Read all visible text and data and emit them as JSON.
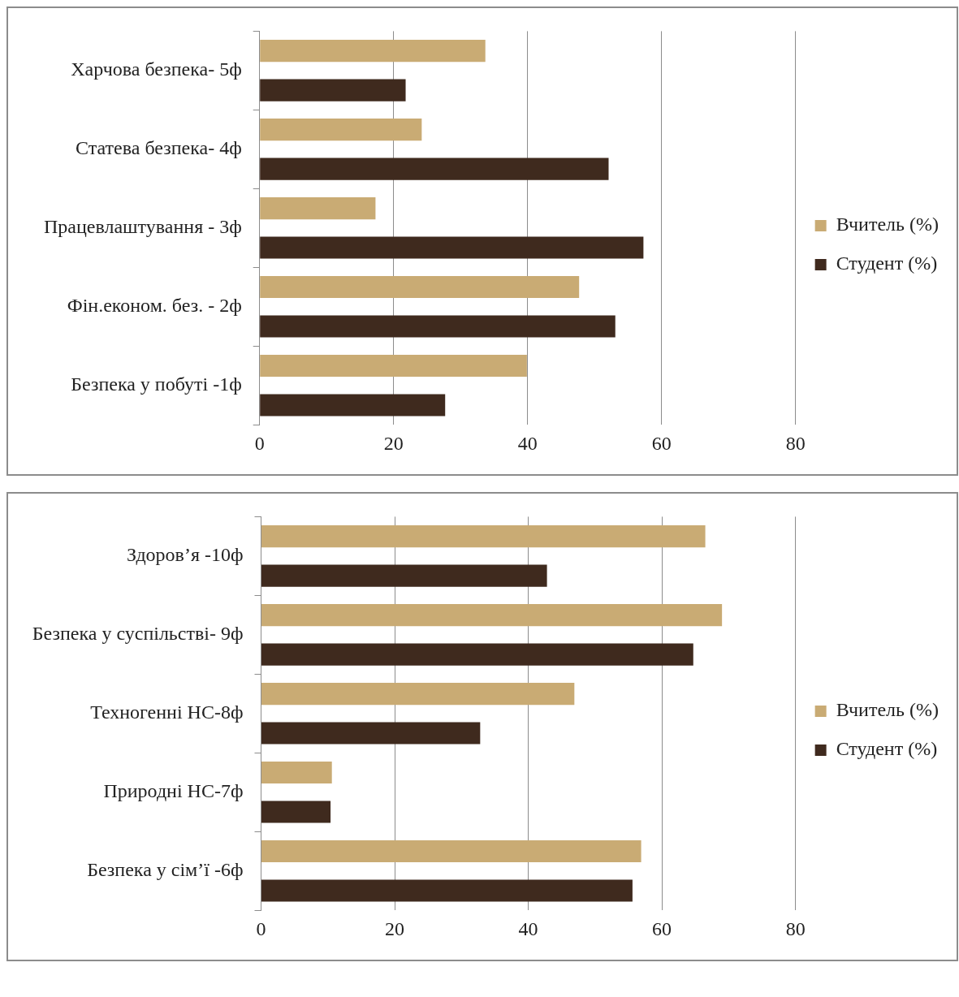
{
  "chart_data": [
    {
      "type": "bar",
      "orientation": "horizontal",
      "categories": [
        "Харчова безпека- 5ф",
        "Статева безпека- 4ф",
        "Працевлаштування - 3ф",
        "Фін.економ. без. - 2ф",
        "Безпека у побуті -1ф"
      ],
      "series": [
        {
          "name": "Вчитель (%)",
          "color": "#c9ab74",
          "values": [
            33.7,
            24.2,
            17.3,
            47.7,
            39.9
          ]
        },
        {
          "name": "Студент (%)",
          "color": "#3f2a1e",
          "values": [
            21.8,
            52.1,
            57.3,
            53.1,
            27.7
          ]
        }
      ],
      "xlim": [
        0,
        80
      ],
      "xticks": [
        0,
        20,
        40,
        60,
        80
      ],
      "grid": "x",
      "legend": "right"
    },
    {
      "type": "bar",
      "orientation": "horizontal",
      "categories": [
        "Здоров’я -10ф",
        "Безпека у суспільстві- 9ф",
        "Техногенні НС-8ф",
        "Природні НС-7ф",
        "Безпека у сім’ї -6ф"
      ],
      "series": [
        {
          "name": "Вчитель (%)",
          "color": "#c9ab74",
          "values": [
            66.5,
            69.0,
            46.9,
            10.6,
            56.9
          ]
        },
        {
          "name": "Студент (%)",
          "color": "#3f2a1e",
          "values": [
            42.8,
            64.7,
            32.8,
            10.4,
            55.6
          ]
        }
      ],
      "xlim": [
        0,
        80
      ],
      "xticks": [
        0,
        20,
        40,
        60,
        80
      ],
      "grid": "x",
      "legend": "right"
    }
  ]
}
